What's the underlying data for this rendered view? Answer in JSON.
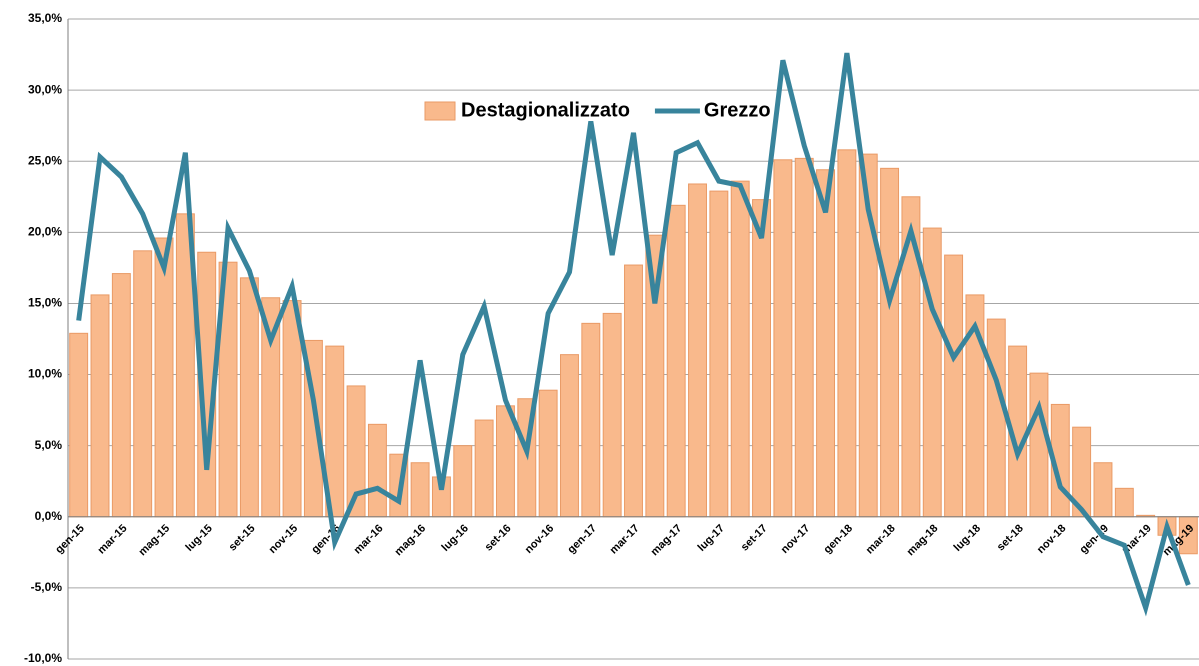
{
  "chart_data": {
    "type": "bar-line",
    "categories": [
      "gen-15",
      null,
      "mar-15",
      null,
      "mag-15",
      null,
      "lug-15",
      null,
      "set-15",
      null,
      "nov-15",
      null,
      "gen-16",
      null,
      "mar-16",
      null,
      "mag-16",
      null,
      "lug-16",
      null,
      "set-16",
      null,
      "nov-16",
      null,
      "gen-17",
      null,
      "mar-17",
      null,
      "mag-17",
      null,
      "lug-17",
      null,
      "set-17",
      null,
      "nov-17",
      null,
      "gen-18",
      null,
      "mar-18",
      null,
      "mag-18",
      null,
      "lug-18",
      null,
      "set-18",
      null,
      "nov-18",
      null,
      "gen-19",
      null,
      "mar-19",
      null,
      "mag-19"
    ],
    "series": [
      {
        "name": "Destagionalizzato",
        "type": "bar",
        "color": "#f9b98c",
        "stroke": "#e99a66",
        "values": [
          12.9,
          15.6,
          17.1,
          18.7,
          19.6,
          21.3,
          18.6,
          17.9,
          16.8,
          15.4,
          15.2,
          12.4,
          12.0,
          9.2,
          6.5,
          4.4,
          3.8,
          2.8,
          5.0,
          6.8,
          7.8,
          8.3,
          8.9,
          11.4,
          13.6,
          14.3,
          17.7,
          19.8,
          21.9,
          23.4,
          22.9,
          23.6,
          22.3,
          25.1,
          25.2,
          24.4,
          25.8,
          25.5,
          24.5,
          22.5,
          20.3,
          18.4,
          15.6,
          13.9,
          12.0,
          10.1,
          7.9,
          6.3,
          3.8,
          2.0,
          0.1,
          -1.3,
          -2.6
        ]
      },
      {
        "name": "Grezzo",
        "type": "line",
        "color": "#38849c",
        "values": [
          13.8,
          25.3,
          23.9,
          21.3,
          17.5,
          25.6,
          3.3,
          20.3,
          17.3,
          12.4,
          16.2,
          8.2,
          -1.8,
          1.6,
          2.0,
          1.1,
          11.0,
          1.9,
          11.4,
          14.8,
          8.2,
          4.6,
          14.3,
          17.2,
          27.8,
          18.4,
          27.0,
          15.0,
          25.6,
          26.3,
          23.6,
          23.3,
          19.6,
          32.1,
          26.1,
          21.4,
          32.6,
          21.6,
          15.2,
          20.1,
          14.6,
          11.2,
          13.4,
          9.6,
          4.4,
          7.7,
          2.1,
          0.5,
          -1.4,
          -2.0,
          -6.4,
          -0.7,
          -4.8
        ]
      }
    ],
    "ylim": [
      -10,
      35
    ],
    "yticks": [
      {
        "value": -10,
        "label": "-10,0%"
      },
      {
        "value": -5,
        "label": "-5,0%"
      },
      {
        "value": 0,
        "label": "0,0%"
      },
      {
        "value": 5,
        "label": "5,0%"
      },
      {
        "value": 10,
        "label": "10,0%"
      },
      {
        "value": 15,
        "label": "15,0%"
      },
      {
        "value": 20,
        "label": "20,0%"
      },
      {
        "value": 25,
        "label": "25,0%"
      },
      {
        "value": 30,
        "label": "30,0%"
      },
      {
        "value": 35,
        "label": "35,0%"
      }
    ],
    "grid": true,
    "legend": "top"
  }
}
